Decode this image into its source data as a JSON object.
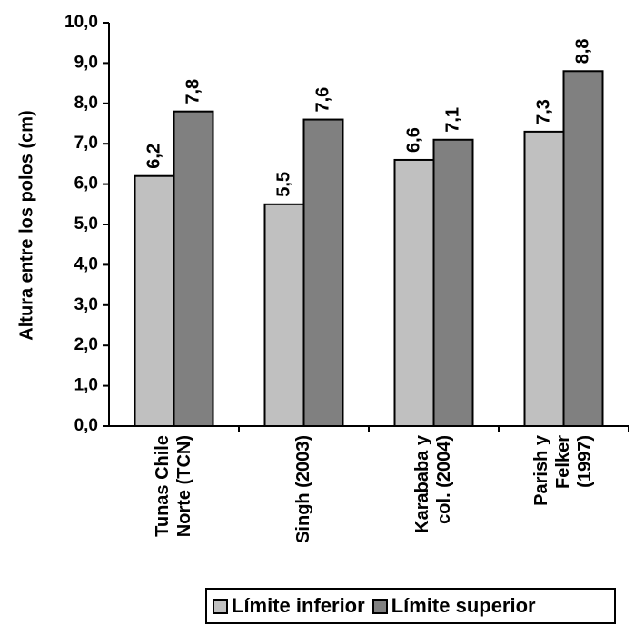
{
  "chart_data": {
    "type": "bar",
    "ylabel": "Altura entre los polos (cm)",
    "xlabel": "",
    "ylim": [
      0,
      10
    ],
    "yticks": [
      "0,0",
      "1,0",
      "2,0",
      "3,0",
      "4,0",
      "5,0",
      "6,0",
      "7,0",
      "8,0",
      "9,0",
      "10,0"
    ],
    "categories": [
      [
        "Tunas Chile",
        "Norte (TCN)"
      ],
      [
        "Singh (2003)"
      ],
      [
        "Karababa y",
        "col. (2004)"
      ],
      [
        "Parish y",
        "Felker",
        "(1997)"
      ]
    ],
    "series": [
      {
        "name": "Límite inferior",
        "color": "#c0c0c0",
        "values": [
          6.2,
          5.5,
          6.6,
          7.3
        ],
        "labels": [
          "6,2",
          "5,5",
          "6,6",
          "7,3"
        ]
      },
      {
        "name": "Límite superior",
        "color": "#808080",
        "values": [
          7.8,
          7.6,
          7.1,
          8.8
        ],
        "labels": [
          "7,8",
          "7,6",
          "7,1",
          "8,8"
        ]
      }
    ],
    "legend_position": "bottom",
    "grid": false
  }
}
